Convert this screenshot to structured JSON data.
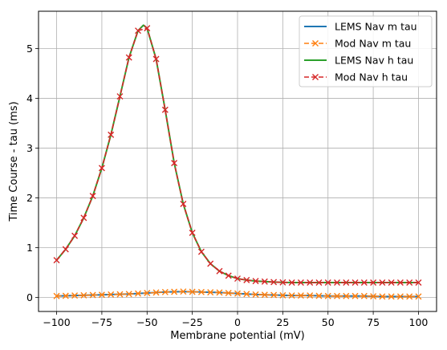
{
  "chart_data": {
    "type": "line",
    "title": "",
    "xlabel": "Membrane potential (mV)",
    "ylabel": "Time Course - tau (ms)",
    "xlim": [
      -110,
      110
    ],
    "ylim": [
      -0.28,
      5.75
    ],
    "xticks": [
      -100,
      -75,
      -50,
      -25,
      0,
      25,
      50,
      75,
      100
    ],
    "yticks": [
      0,
      1,
      2,
      3,
      4,
      5
    ],
    "grid": true,
    "legend": "top-right",
    "series": [
      {
        "name": "LEMS Nav m tau",
        "style": "solid",
        "color": "#1f77b4",
        "x": [
          -100,
          -90,
          -80,
          -70,
          -60,
          -55,
          -50,
          -45,
          -40,
          -30,
          -20,
          -10,
          0,
          10,
          20,
          30,
          40,
          50,
          60,
          70,
          80,
          90,
          100
        ],
        "y": [
          0.03,
          0.04,
          0.05,
          0.06,
          0.07,
          0.08,
          0.09,
          0.1,
          0.11,
          0.12,
          0.11,
          0.1,
          0.08,
          0.06,
          0.05,
          0.04,
          0.04,
          0.03,
          0.03,
          0.03,
          0.02,
          0.02,
          0.02
        ]
      },
      {
        "name": "Mod Nav m tau",
        "style": "dashed-x",
        "color": "#ff7f0e",
        "x": [
          -100,
          -95,
          -90,
          -85,
          -80,
          -75,
          -70,
          -65,
          -60,
          -55,
          -50,
          -45,
          -40,
          -35,
          -30,
          -25,
          -20,
          -15,
          -10,
          -5,
          0,
          5,
          10,
          15,
          20,
          25,
          30,
          35,
          40,
          45,
          50,
          55,
          60,
          65,
          70,
          75,
          80,
          85,
          90,
          95,
          100
        ],
        "y": [
          0.03,
          0.035,
          0.04,
          0.045,
          0.05,
          0.055,
          0.06,
          0.065,
          0.07,
          0.08,
          0.09,
          0.1,
          0.11,
          0.115,
          0.12,
          0.115,
          0.11,
          0.105,
          0.1,
          0.09,
          0.08,
          0.07,
          0.06,
          0.055,
          0.05,
          0.045,
          0.04,
          0.04,
          0.04,
          0.035,
          0.03,
          0.03,
          0.03,
          0.03,
          0.03,
          0.025,
          0.02,
          0.02,
          0.02,
          0.02,
          0.02
        ]
      },
      {
        "name": "LEMS Nav h tau",
        "style": "solid",
        "color": "#2ca02c",
        "x": [
          -100,
          -95,
          -90,
          -85,
          -80,
          -75,
          -70,
          -65,
          -60,
          -55,
          -52,
          -50,
          -45,
          -40,
          -35,
          -30,
          -25,
          -20,
          -15,
          -10,
          -5,
          0,
          5,
          10,
          15,
          20,
          25,
          30,
          35,
          40,
          45,
          50,
          55,
          60,
          65,
          70,
          75,
          80,
          85,
          90,
          95,
          100
        ],
        "y": [
          0.75,
          0.97,
          1.24,
          1.6,
          2.04,
          2.6,
          3.27,
          4.04,
          4.82,
          5.36,
          5.47,
          5.41,
          4.79,
          3.77,
          2.7,
          1.88,
          1.3,
          0.92,
          0.68,
          0.53,
          0.44,
          0.38,
          0.35,
          0.33,
          0.32,
          0.31,
          0.305,
          0.3,
          0.3,
          0.3,
          0.3,
          0.3,
          0.3,
          0.3,
          0.3,
          0.3,
          0.3,
          0.3,
          0.3,
          0.3,
          0.3,
          0.3
        ]
      },
      {
        "name": "Mod Nav h tau",
        "style": "dashed-x",
        "color": "#d62728",
        "x": [
          -100,
          -95,
          -90,
          -85,
          -80,
          -75,
          -70,
          -65,
          -60,
          -55,
          -50,
          -45,
          -40,
          -35,
          -30,
          -25,
          -20,
          -15,
          -10,
          -5,
          0,
          5,
          10,
          15,
          20,
          25,
          30,
          35,
          40,
          45,
          50,
          55,
          60,
          65,
          70,
          75,
          80,
          85,
          90,
          95,
          100
        ],
        "y": [
          0.75,
          0.97,
          1.24,
          1.6,
          2.04,
          2.6,
          3.27,
          4.04,
          4.82,
          5.36,
          5.41,
          4.79,
          3.77,
          2.7,
          1.88,
          1.3,
          0.92,
          0.68,
          0.53,
          0.44,
          0.38,
          0.35,
          0.33,
          0.32,
          0.31,
          0.305,
          0.3,
          0.3,
          0.3,
          0.3,
          0.3,
          0.3,
          0.3,
          0.3,
          0.3,
          0.3,
          0.3,
          0.3,
          0.3,
          0.3,
          0.3
        ]
      }
    ]
  }
}
